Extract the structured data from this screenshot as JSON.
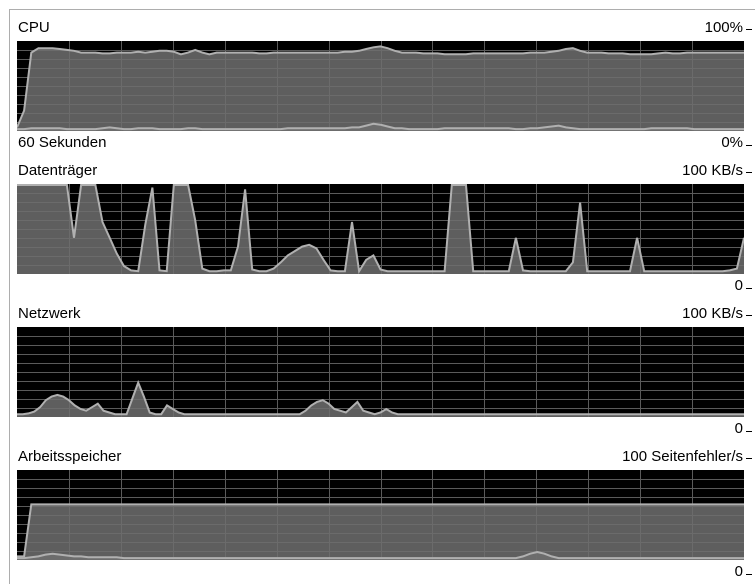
{
  "panels": [
    {
      "id": "cpu",
      "title": "CPU",
      "max_label": "100%",
      "min_label": "0%",
      "time_label": "60 Sekunden",
      "series": [
        [
          3,
          22,
          88,
          93,
          93,
          93,
          92,
          91,
          90,
          88,
          88,
          88,
          87,
          87,
          88,
          88,
          88,
          89,
          88,
          89,
          90,
          90,
          89,
          86,
          88,
          91,
          88,
          86,
          88,
          88,
          88,
          88,
          88,
          88,
          87,
          87,
          88,
          88,
          88,
          88,
          88,
          88,
          88,
          88,
          88,
          88,
          89,
          89,
          90,
          92,
          94,
          95,
          93,
          90,
          88,
          88,
          88,
          87,
          87,
          87,
          86,
          86,
          86,
          86,
          87,
          87,
          87,
          87,
          87,
          87,
          87,
          87,
          88,
          88,
          88,
          89,
          90,
          92,
          93,
          90,
          88,
          88,
          88,
          87,
          87,
          87,
          86,
          86,
          86,
          86,
          87,
          88,
          87,
          87,
          88,
          88,
          88,
          88,
          88,
          88,
          88,
          88,
          88
        ],
        [
          1,
          1,
          2,
          2,
          2,
          2,
          2,
          1,
          1,
          1,
          1,
          1,
          2,
          3,
          2,
          1,
          1,
          2,
          2,
          2,
          1,
          1,
          1,
          1,
          2,
          2,
          1,
          1,
          1,
          1,
          1,
          1,
          1,
          1,
          1,
          1,
          1,
          1,
          2,
          2,
          2,
          2,
          2,
          2,
          2,
          2,
          2,
          3,
          3,
          5,
          7,
          6,
          4,
          2,
          2,
          1,
          1,
          1,
          1,
          1,
          2,
          2,
          2,
          2,
          2,
          2,
          2,
          2,
          2,
          2,
          1,
          1,
          2,
          2,
          3,
          4,
          5,
          3,
          2,
          1,
          1,
          1,
          1,
          1,
          1,
          1,
          1,
          1,
          1,
          2,
          2,
          2,
          2,
          2,
          2,
          1,
          1,
          1,
          1,
          1,
          1,
          1,
          1
        ]
      ]
    },
    {
      "id": "disk",
      "title": "Datenträger",
      "max_label": "100 KB/s",
      "min_label": "0",
      "series": [
        [
          100,
          100,
          100,
          100,
          100,
          100,
          100,
          100,
          40,
          100,
          100,
          100,
          58,
          40,
          22,
          8,
          3,
          2,
          55,
          97,
          3,
          2,
          100,
          100,
          100,
          60,
          5,
          2,
          2,
          3,
          3,
          30,
          95,
          4,
          2,
          2,
          5,
          12,
          20,
          25,
          30,
          32,
          28,
          15,
          3,
          2,
          2,
          58,
          2,
          15,
          20,
          4,
          2,
          2,
          2,
          2,
          2,
          2,
          2,
          2,
          2,
          100,
          100,
          100,
          2,
          2,
          2,
          2,
          2,
          2,
          40,
          3,
          2,
          2,
          2,
          2,
          2,
          2,
          12,
          80,
          2,
          2,
          2,
          2,
          2,
          2,
          2,
          40,
          2,
          2,
          2,
          2,
          2,
          2,
          2,
          2,
          2,
          2,
          2,
          2,
          3,
          5,
          40
        ]
      ]
    },
    {
      "id": "network",
      "title": "Netzwerk",
      "max_label": "100 KB/s",
      "min_label": "0",
      "series": [
        [
          2,
          2,
          3,
          5,
          10,
          18,
          22,
          24,
          22,
          18,
          12,
          8,
          6,
          10,
          14,
          6,
          4,
          2,
          2,
          2,
          20,
          38,
          22,
          4,
          2,
          2,
          12,
          8,
          4,
          2,
          2,
          2,
          2,
          2,
          2,
          2,
          2,
          2,
          2,
          2,
          2,
          2,
          2,
          2,
          2,
          2,
          2,
          2,
          2,
          2,
          6,
          12,
          16,
          18,
          14,
          8,
          6,
          4,
          10,
          16,
          6,
          4,
          2,
          4,
          8,
          4,
          2,
          2,
          2,
          2,
          2,
          2,
          2,
          2,
          2,
          2,
          2,
          2,
          2,
          2,
          2,
          2,
          2,
          2,
          2,
          2,
          2,
          2,
          2,
          2,
          2,
          2,
          2,
          2,
          2,
          2,
          2,
          2,
          2,
          2,
          2,
          2,
          2,
          2,
          2,
          2,
          2,
          2,
          2,
          2,
          2,
          2,
          2,
          2,
          2,
          2,
          2,
          2,
          2,
          2,
          2,
          2,
          2,
          2,
          2,
          2,
          2
        ]
      ]
    },
    {
      "id": "memory",
      "title": "Arbeitsspeicher",
      "max_label": "100 Seitenfehler/s",
      "min_label": "0",
      "series": [
        [
          3,
          3,
          62,
          62,
          62,
          62,
          62,
          62,
          62,
          62,
          62,
          62,
          62,
          62,
          62,
          62,
          62,
          62,
          62,
          62,
          62,
          62,
          62,
          62,
          62,
          62,
          62,
          62,
          62,
          62,
          62,
          62,
          62,
          62,
          62,
          62,
          62,
          62,
          62,
          62,
          62,
          62,
          62,
          62,
          62,
          62,
          62,
          62,
          62,
          62,
          62,
          62,
          62,
          62,
          62,
          62,
          62,
          62,
          62,
          62,
          62,
          62,
          62,
          62,
          62,
          62,
          62,
          62,
          62,
          62,
          62,
          62,
          62,
          62,
          62,
          62,
          62,
          62,
          62,
          62,
          62,
          62,
          62,
          62,
          62,
          62,
          62,
          62,
          62,
          62,
          62,
          62,
          62,
          62,
          62,
          62,
          62,
          62,
          62,
          62,
          62,
          62,
          62
        ],
        [
          1,
          1,
          2,
          3,
          5,
          6,
          5,
          4,
          3,
          3,
          2,
          2,
          2,
          2,
          2,
          1,
          1,
          1,
          1,
          1,
          1,
          1,
          1,
          1,
          1,
          1,
          1,
          1,
          1,
          1,
          1,
          1,
          1,
          1,
          1,
          1,
          1,
          1,
          1,
          1,
          1,
          1,
          1,
          1,
          1,
          1,
          1,
          1,
          1,
          1,
          1,
          1,
          1,
          1,
          1,
          1,
          1,
          1,
          1,
          1,
          1,
          1,
          1,
          1,
          1,
          1,
          1,
          1,
          1,
          1,
          1,
          3,
          6,
          8,
          6,
          3,
          1,
          1,
          1,
          1,
          1,
          1,
          1,
          1,
          1,
          1,
          1,
          1,
          1,
          1,
          1,
          1,
          1,
          1,
          1,
          1,
          1,
          1,
          1,
          1,
          1,
          1,
          1
        ]
      ]
    }
  ],
  "colors": {
    "graph_bg": "#000000",
    "grid": "#5a5a5a",
    "line": "#b0b0b0",
    "fill": "#6e6e6e",
    "border": "#adadad"
  }
}
